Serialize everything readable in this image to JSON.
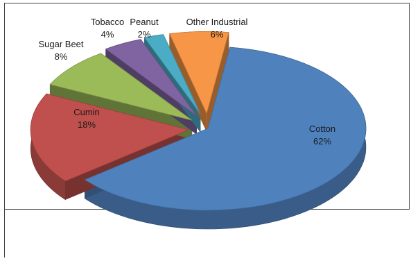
{
  "chart_data": {
    "type": "pie",
    "style": "3d-exploded",
    "title": "",
    "legend": "none",
    "labels": [
      "Cotton",
      "Cumin",
      "Sugar Beet",
      "Tobacco",
      "Peanut",
      "Other Industrial"
    ],
    "values": [
      62,
      18,
      8,
      4,
      2,
      6
    ],
    "value_labels": [
      "62%",
      "18%",
      "8%",
      "4%",
      "2%",
      "6%"
    ],
    "colors": [
      "#4F81BD",
      "#C0504D",
      "#9BBB59",
      "#8064A2",
      "#4BACC6",
      "#F79646"
    ]
  }
}
